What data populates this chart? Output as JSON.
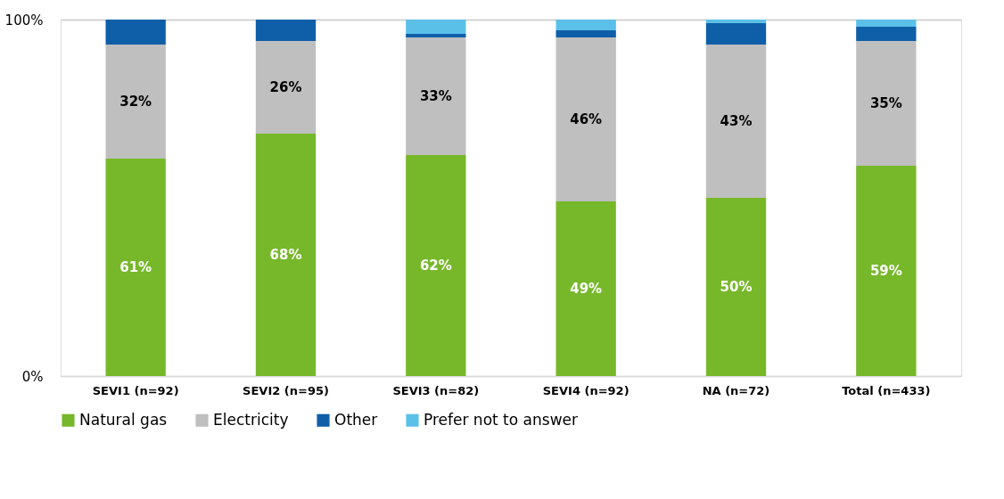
{
  "chart_data": {
    "type": "bar",
    "stacked": true,
    "categories": [
      "SEVI1 (n=92)",
      "SEVI2 (n=95)",
      "SEVI3 (n=82)",
      "SEVI4 (n=92)",
      "NA (n=72)",
      "Total (n=433)"
    ],
    "series": [
      {
        "name": "Natural gas",
        "color": "#77b82a",
        "values": [
          61,
          68,
          62,
          49,
          50,
          59
        ],
        "value_labels": [
          "61%",
          "68%",
          "62%",
          "49%",
          "50%",
          "59%"
        ]
      },
      {
        "name": "Electricity",
        "color": "#bfbfbf",
        "values": [
          32,
          26,
          33,
          46,
          43,
          35
        ],
        "value_labels": [
          "32%",
          "26%",
          "33%",
          "46%",
          "43%",
          "35%"
        ]
      },
      {
        "name": "Other",
        "color": "#0f5ea8",
        "values": [
          7,
          6,
          1,
          2,
          6,
          4
        ]
      },
      {
        "name": "Prefer not to answer",
        "color": "#5bc0e8",
        "values": [
          0,
          0,
          4,
          3,
          1,
          2
        ]
      }
    ],
    "ylim": [
      0,
      100
    ],
    "yticks": [
      {
        "value": 0,
        "label": "0%"
      },
      {
        "value": 100,
        "label": "100%"
      }
    ],
    "grid": "y",
    "legend": "bottom"
  }
}
